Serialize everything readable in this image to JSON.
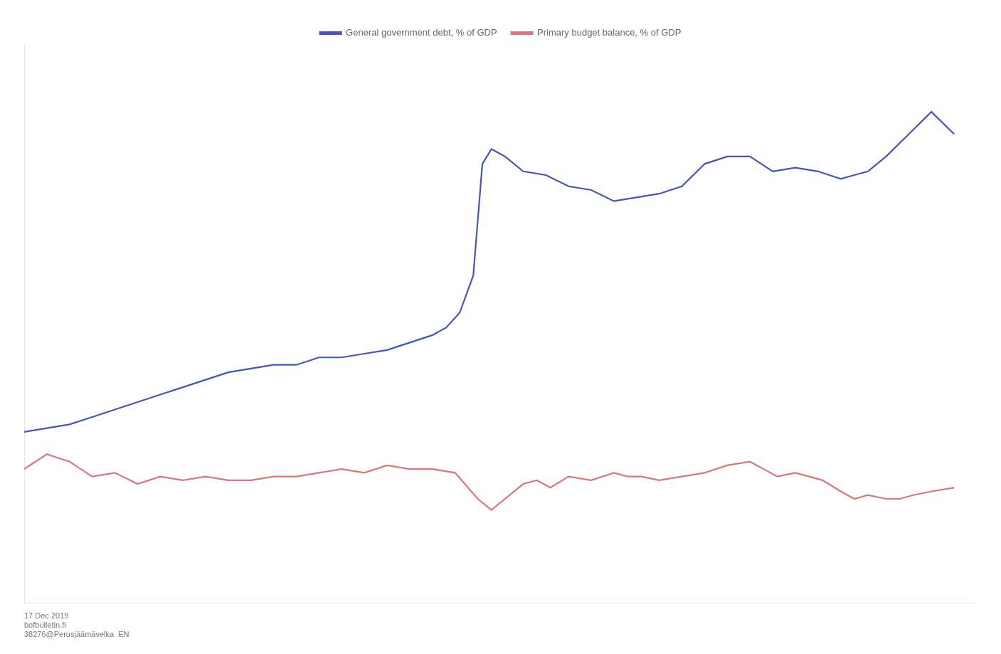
{
  "chart_data": {
    "type": "line",
    "series": [
      {
        "name": "General government debt, % of GDP",
        "color": "#4455bb",
        "x": [
          1999,
          1999.5,
          2000,
          2000.5,
          2001,
          2001.5,
          2002,
          2002.5,
          2003,
          2003.5,
          2004,
          2004.5,
          2005,
          2005.5,
          2006,
          2006.5,
          2007,
          2007.5,
          2008,
          2008.3,
          2008.6,
          2008.9,
          2009.1,
          2009.3,
          2009.6,
          2010,
          2010.5,
          2011,
          2011.5,
          2012,
          2012.5,
          2013,
          2013.5,
          2014,
          2014.5,
          2015,
          2015.5,
          2016,
          2016.5,
          2017,
          2017.3,
          2017.6,
          2018,
          2018.5,
          2019,
          2019.5
        ],
        "values": [
          23,
          23.5,
          24,
          25,
          26,
          27,
          28,
          29,
          30,
          31,
          31.5,
          32,
          32,
          33,
          33,
          33.5,
          34,
          35,
          36,
          37,
          39,
          44,
          59,
          61,
          60,
          58,
          57.5,
          56,
          55.5,
          54,
          54.5,
          55,
          56,
          59,
          60,
          60,
          58,
          58.5,
          58,
          57,
          57.5,
          58,
          60,
          63,
          66,
          63
        ]
      },
      {
        "name": "Primary budget balance, % of GDP",
        "color": "#dd7777",
        "x": [
          1999,
          1999.5,
          2000,
          2000.5,
          2001,
          2001.5,
          2002,
          2002.5,
          2003,
          2003.5,
          2004,
          2004.5,
          2005,
          2005.5,
          2006,
          2006.5,
          2007,
          2007.5,
          2008,
          2008.5,
          2009,
          2009.3,
          2009.6,
          2010,
          2010.3,
          2010.6,
          2011,
          2011.5,
          2012,
          2012.3,
          2012.6,
          2013,
          2013.5,
          2014,
          2014.5,
          2015,
          2015.3,
          2015.6,
          2016,
          2016.3,
          2016.6,
          2017,
          2017.3,
          2017.6,
          2018,
          2018.3,
          2018.6,
          2019,
          2019.5
        ],
        "values": [
          18,
          20,
          19,
          17,
          17.5,
          16,
          17,
          16.5,
          17,
          16.5,
          16.5,
          17,
          17,
          17.5,
          18,
          17.5,
          18.5,
          18,
          18,
          17.5,
          14,
          12.5,
          14,
          16,
          16.5,
          15.5,
          17,
          16.5,
          17.5,
          17,
          17,
          16.5,
          17,
          17.5,
          18.5,
          19,
          18,
          17,
          17.5,
          17,
          16.5,
          15,
          14,
          14.5,
          14,
          14,
          14.5,
          15,
          15.5
        ]
      }
    ],
    "annotations": [
      "17 Dec 2019\nbofbulletin.fi\n38276@Perusjäämävelka  EN"
    ],
    "xlim": [
      1999,
      2020
    ],
    "ylim": [
      0,
      75
    ],
    "tick_labels": false,
    "grid": false,
    "legend": "top"
  }
}
